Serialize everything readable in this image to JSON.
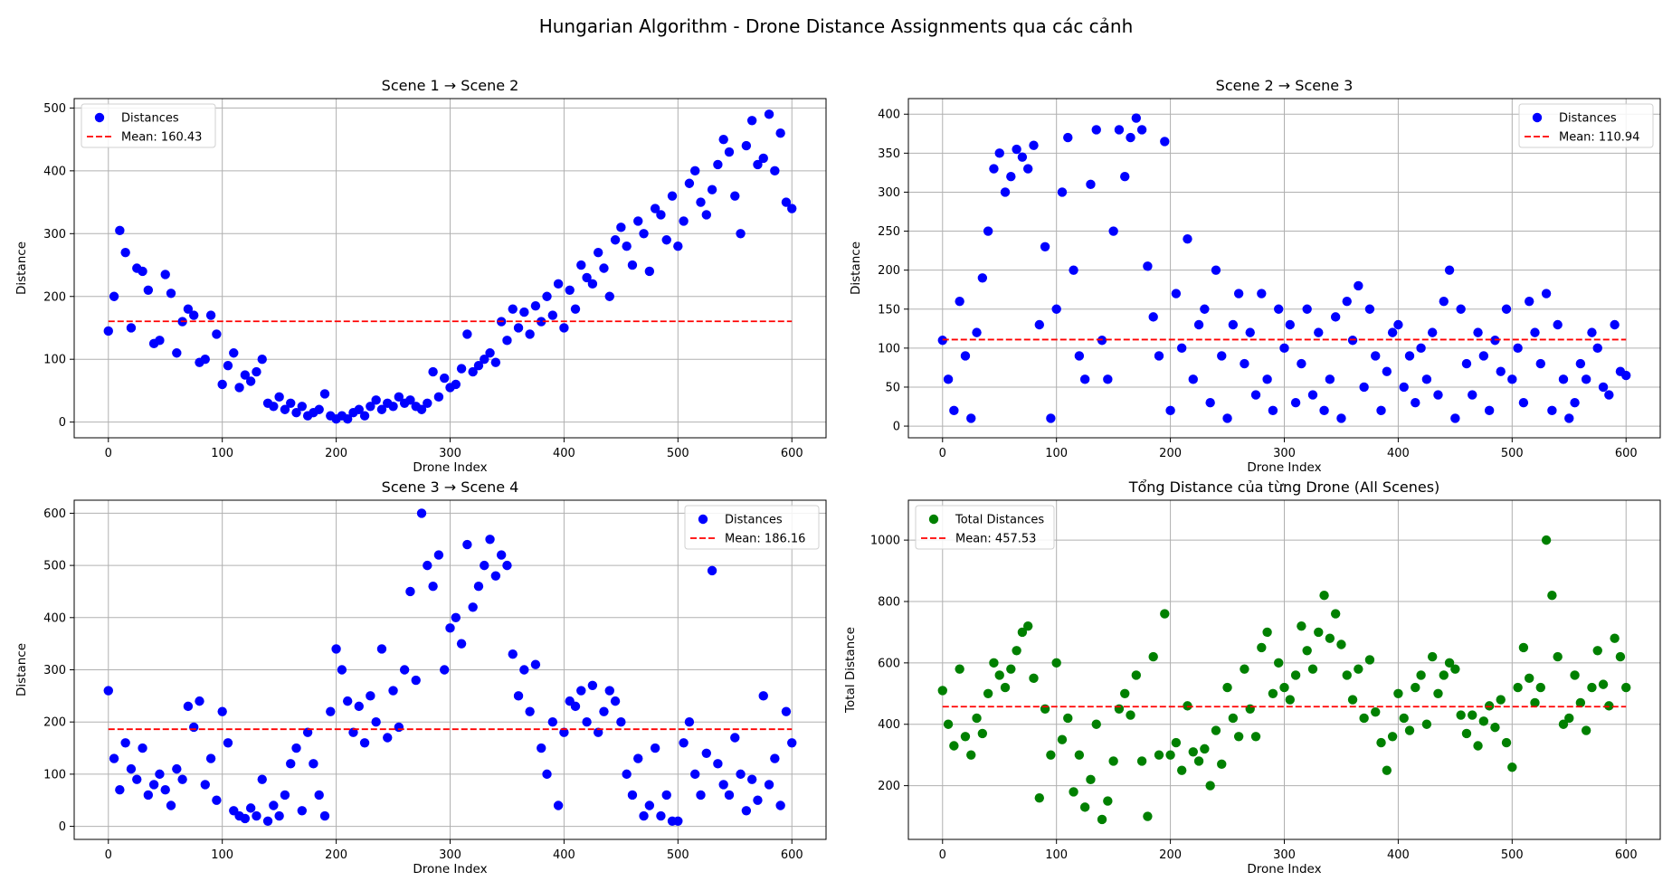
{
  "figure": {
    "suptitle": "Hungarian Algorithm - Drone Distance Assignments qua các cảnh"
  },
  "chart_data": [
    {
      "type": "scatter",
      "title": "Scene 1 → Scene 2",
      "xlabel": "Drone Index",
      "ylabel": "Distance",
      "xlim": [
        -30,
        630
      ],
      "ylim": [
        -25,
        515
      ],
      "xticks": [
        0,
        100,
        200,
        300,
        400,
        500,
        600
      ],
      "yticks": [
        0,
        100,
        200,
        300,
        400,
        500
      ],
      "grid": true,
      "legend_position": "upper left",
      "point_color": "#0000ff",
      "mean": 160.43,
      "legend": {
        "series_label": "Distances",
        "mean_label": "Mean: 160.43"
      },
      "series": [
        {
          "name": "Distances",
          "x": [
            0,
            5,
            10,
            15,
            20,
            25,
            30,
            35,
            40,
            45,
            50,
            55,
            60,
            65,
            70,
            75,
            80,
            85,
            90,
            95,
            100,
            105,
            110,
            115,
            120,
            125,
            130,
            135,
            140,
            145,
            150,
            155,
            160,
            165,
            170,
            175,
            180,
            185,
            190,
            195,
            200,
            205,
            210,
            215,
            220,
            225,
            230,
            235,
            240,
            245,
            250,
            255,
            260,
            265,
            270,
            275,
            280,
            285,
            290,
            295,
            300,
            305,
            310,
            315,
            320,
            325,
            330,
            335,
            340,
            345,
            350,
            355,
            360,
            365,
            370,
            375,
            380,
            385,
            390,
            395,
            400,
            405,
            410,
            415,
            420,
            425,
            430,
            435,
            440,
            445,
            450,
            455,
            460,
            465,
            470,
            475,
            480,
            485,
            490,
            495,
            500,
            505,
            510,
            515,
            520,
            525,
            530,
            535,
            540,
            545,
            550,
            555,
            560,
            565,
            570,
            575,
            580,
            585,
            590,
            595,
            600
          ],
          "y": [
            145,
            200,
            305,
            270,
            150,
            245,
            240,
            210,
            125,
            130,
            235,
            205,
            110,
            160,
            180,
            170,
            95,
            100,
            170,
            140,
            60,
            90,
            110,
            55,
            75,
            65,
            80,
            100,
            30,
            25,
            40,
            20,
            30,
            15,
            25,
            10,
            15,
            20,
            45,
            10,
            5,
            10,
            5,
            15,
            20,
            10,
            25,
            35,
            20,
            30,
            25,
            40,
            30,
            35,
            25,
            20,
            30,
            80,
            40,
            70,
            55,
            60,
            85,
            140,
            80,
            90,
            100,
            110,
            95,
            160,
            130,
            180,
            150,
            175,
            140,
            185,
            160,
            200,
            170,
            220,
            150,
            210,
            180,
            250,
            230,
            220,
            270,
            245,
            200,
            290,
            310,
            280,
            250,
            320,
            300,
            240,
            340,
            330,
            290,
            360,
            280,
            320,
            380,
            400,
            350,
            330,
            370,
            410,
            450,
            430,
            360,
            300,
            440,
            480,
            410,
            420,
            490,
            400,
            460,
            350,
            340
          ]
        }
      ]
    },
    {
      "type": "scatter",
      "title": "Scene 2 → Scene 3",
      "xlabel": "Drone Index",
      "ylabel": "Distance",
      "xlim": [
        -30,
        630
      ],
      "ylim": [
        -15,
        420
      ],
      "xticks": [
        0,
        100,
        200,
        300,
        400,
        500,
        600
      ],
      "yticks": [
        0,
        50,
        100,
        150,
        200,
        250,
        300,
        350,
        400
      ],
      "grid": true,
      "legend_position": "upper right",
      "point_color": "#0000ff",
      "mean": 110.94,
      "legend": {
        "series_label": "Distances",
        "mean_label": "Mean: 110.94"
      },
      "series": [
        {
          "name": "Distances",
          "x": [
            0,
            5,
            10,
            15,
            20,
            25,
            30,
            35,
            40,
            45,
            50,
            55,
            60,
            65,
            70,
            75,
            80,
            85,
            90,
            95,
            100,
            105,
            110,
            115,
            120,
            125,
            130,
            135,
            140,
            145,
            150,
            155,
            160,
            165,
            170,
            175,
            180,
            185,
            190,
            195,
            200,
            205,
            210,
            215,
            220,
            225,
            230,
            235,
            240,
            245,
            250,
            255,
            260,
            265,
            270,
            275,
            280,
            285,
            290,
            295,
            300,
            305,
            310,
            315,
            320,
            325,
            330,
            335,
            340,
            345,
            350,
            355,
            360,
            365,
            370,
            375,
            380,
            385,
            390,
            395,
            400,
            405,
            410,
            415,
            420,
            425,
            430,
            435,
            440,
            445,
            450,
            455,
            460,
            465,
            470,
            475,
            480,
            485,
            490,
            495,
            500,
            505,
            510,
            515,
            520,
            525,
            530,
            535,
            540,
            545,
            550,
            555,
            560,
            565,
            570,
            575,
            580,
            585,
            590,
            595,
            600
          ],
          "y": [
            110,
            60,
            20,
            160,
            90,
            10,
            120,
            190,
            250,
            330,
            350,
            300,
            320,
            355,
            345,
            330,
            360,
            130,
            230,
            10,
            150,
            300,
            370,
            200,
            90,
            60,
            310,
            380,
            110,
            60,
            250,
            380,
            320,
            370,
            395,
            380,
            205,
            140,
            90,
            365,
            20,
            170,
            100,
            240,
            60,
            130,
            150,
            30,
            200,
            90,
            10,
            130,
            170,
            80,
            120,
            40,
            170,
            60,
            20,
            150,
            100,
            130,
            30,
            80,
            150,
            40,
            120,
            20,
            60,
            140,
            10,
            160,
            110,
            180,
            50,
            150,
            90,
            20,
            70,
            120,
            130,
            50,
            90,
            30,
            100,
            60,
            120,
            40,
            160,
            200,
            10,
            150,
            80,
            40,
            120,
            90,
            20,
            110,
            70,
            150,
            60,
            100,
            30,
            160,
            120,
            80,
            170,
            20,
            130,
            60,
            10,
            30,
            80,
            60,
            120,
            100,
            50,
            40,
            130,
            70,
            65
          ]
        }
      ]
    },
    {
      "type": "scatter",
      "title": "Scene 3 → Scene 4",
      "xlabel": "Drone Index",
      "ylabel": "Distance",
      "xlim": [
        -30,
        630
      ],
      "ylim": [
        -25,
        625
      ],
      "xticks": [
        0,
        100,
        200,
        300,
        400,
        500,
        600
      ],
      "yticks": [
        0,
        100,
        200,
        300,
        400,
        500,
        600
      ],
      "grid": true,
      "legend_position": "upper right",
      "point_color": "#0000ff",
      "mean": 186.16,
      "legend": {
        "series_label": "Distances",
        "mean_label": "Mean: 186.16"
      },
      "series": [
        {
          "name": "Distances",
          "x": [
            0,
            5,
            10,
            15,
            20,
            25,
            30,
            35,
            40,
            45,
            50,
            55,
            60,
            65,
            70,
            75,
            80,
            85,
            90,
            95,
            100,
            105,
            110,
            115,
            120,
            125,
            130,
            135,
            140,
            145,
            150,
            155,
            160,
            165,
            170,
            175,
            180,
            185,
            190,
            195,
            200,
            205,
            210,
            215,
            220,
            225,
            230,
            235,
            240,
            245,
            250,
            255,
            260,
            265,
            270,
            275,
            280,
            285,
            290,
            295,
            300,
            305,
            310,
            315,
            320,
            325,
            330,
            335,
            340,
            345,
            350,
            355,
            360,
            365,
            370,
            375,
            380,
            385,
            390,
            395,
            400,
            405,
            410,
            415,
            420,
            425,
            430,
            435,
            440,
            445,
            450,
            455,
            460,
            465,
            470,
            475,
            480,
            485,
            490,
            495,
            500,
            505,
            510,
            515,
            520,
            525,
            530,
            535,
            540,
            545,
            550,
            555,
            560,
            565,
            570,
            575,
            580,
            585,
            590,
            595,
            600
          ],
          "y": [
            260,
            130,
            70,
            160,
            110,
            90,
            150,
            60,
            80,
            100,
            70,
            40,
            110,
            90,
            230,
            190,
            240,
            80,
            130,
            50,
            220,
            160,
            30,
            20,
            15,
            35,
            20,
            90,
            10,
            40,
            20,
            60,
            120,
            150,
            30,
            180,
            120,
            60,
            20,
            220,
            340,
            300,
            240,
            180,
            230,
            160,
            250,
            200,
            340,
            170,
            260,
            190,
            300,
            450,
            280,
            600,
            500,
            460,
            520,
            300,
            380,
            400,
            350,
            540,
            420,
            460,
            500,
            550,
            480,
            520,
            500,
            330,
            250,
            300,
            220,
            310,
            150,
            100,
            200,
            40,
            180,
            240,
            230,
            260,
            200,
            270,
            180,
            220,
            260,
            240,
            200,
            100,
            60,
            130,
            20,
            40,
            150,
            20,
            60,
            10,
            10,
            160,
            200,
            100,
            60,
            140,
            490,
            120,
            80,
            60,
            170,
            100,
            30,
            90,
            50,
            250,
            80,
            130,
            40,
            220,
            160
          ]
        }
      ]
    },
    {
      "type": "scatter",
      "title": "Tổng Distance của từng Drone (All Scenes)",
      "xlabel": "Drone Index",
      "ylabel": "Total Distance",
      "xlim": [
        -30,
        630
      ],
      "ylim": [
        25,
        1130
      ],
      "xticks": [
        0,
        100,
        200,
        300,
        400,
        500,
        600
      ],
      "yticks": [
        200,
        400,
        600,
        800,
        1000
      ],
      "grid": true,
      "legend_position": "upper left",
      "point_color": "#008000",
      "mean": 457.53,
      "legend": {
        "series_label": "Total Distances",
        "mean_label": "Mean: 457.53"
      },
      "series": [
        {
          "name": "Total Distances",
          "x": [
            0,
            5,
            10,
            15,
            20,
            25,
            30,
            35,
            40,
            45,
            50,
            55,
            60,
            65,
            70,
            75,
            80,
            85,
            90,
            95,
            100,
            105,
            110,
            115,
            120,
            125,
            130,
            135,
            140,
            145,
            150,
            155,
            160,
            165,
            170,
            175,
            180,
            185,
            190,
            195,
            200,
            205,
            210,
            215,
            220,
            225,
            230,
            235,
            240,
            245,
            250,
            255,
            260,
            265,
            270,
            275,
            280,
            285,
            290,
            295,
            300,
            305,
            310,
            315,
            320,
            325,
            330,
            335,
            340,
            345,
            350,
            355,
            360,
            365,
            370,
            375,
            380,
            385,
            390,
            395,
            400,
            405,
            410,
            415,
            420,
            425,
            430,
            435,
            440,
            445,
            450,
            455,
            460,
            465,
            470,
            475,
            480,
            485,
            490,
            495,
            500,
            505,
            510,
            515,
            520,
            525,
            530,
            535,
            540,
            545,
            550,
            555,
            560,
            565,
            570,
            575,
            580,
            585,
            590,
            595,
            600
          ],
          "y": [
            510,
            400,
            330,
            580,
            360,
            300,
            420,
            370,
            500,
            600,
            560,
            520,
            580,
            640,
            700,
            720,
            550,
            160,
            450,
            300,
            600,
            350,
            420,
            180,
            300,
            130,
            220,
            400,
            90,
            150,
            280,
            450,
            500,
            430,
            560,
            280,
            100,
            620,
            300,
            760,
            300,
            340,
            250,
            460,
            310,
            280,
            320,
            200,
            380,
            270,
            520,
            420,
            360,
            580,
            450,
            360,
            650,
            700,
            500,
            600,
            520,
            480,
            560,
            720,
            640,
            580,
            700,
            820,
            680,
            760,
            660,
            560,
            480,
            580,
            420,
            610,
            440,
            340,
            250,
            360,
            500,
            420,
            380,
            520,
            560,
            400,
            620,
            500,
            560,
            600,
            580,
            430,
            370,
            430,
            330,
            410,
            460,
            390,
            480,
            340,
            260,
            520,
            650,
            550,
            470,
            520,
            1000,
            820,
            620,
            400,
            420,
            560,
            470,
            380,
            520,
            640,
            530,
            460,
            680,
            620,
            520
          ]
        }
      ]
    }
  ]
}
